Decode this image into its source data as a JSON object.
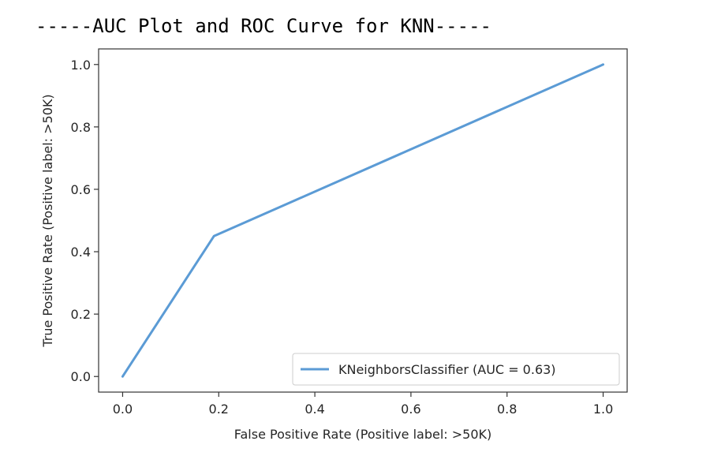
{
  "header_text": "-----AUC Plot and ROC Curve for KNN-----",
  "chart_data": {
    "type": "line",
    "xlabel": "False Positive Rate (Positive label:  >50K)",
    "ylabel": "True Positive Rate (Positive label:  >50K)",
    "xlim": [
      -0.05,
      1.05
    ],
    "ylim": [
      -0.05,
      1.05
    ],
    "xticks": [
      0.0,
      0.2,
      0.4,
      0.6,
      0.8,
      1.0
    ],
    "yticks": [
      0.0,
      0.2,
      0.4,
      0.6,
      0.8,
      1.0
    ],
    "xtick_labels": [
      "0.0",
      "0.2",
      "0.4",
      "0.6",
      "0.8",
      "1.0"
    ],
    "ytick_labels": [
      "0.0",
      "0.2",
      "0.4",
      "0.6",
      "0.8",
      "1.0"
    ],
    "grid": false,
    "legend_position": "lower-right",
    "series": [
      {
        "name": "KNeighborsClassifier (AUC = 0.63)",
        "color": "#5b9bd5",
        "x": [
          0.0,
          0.19,
          1.0
        ],
        "y": [
          0.0,
          0.45,
          1.0
        ]
      }
    ]
  }
}
